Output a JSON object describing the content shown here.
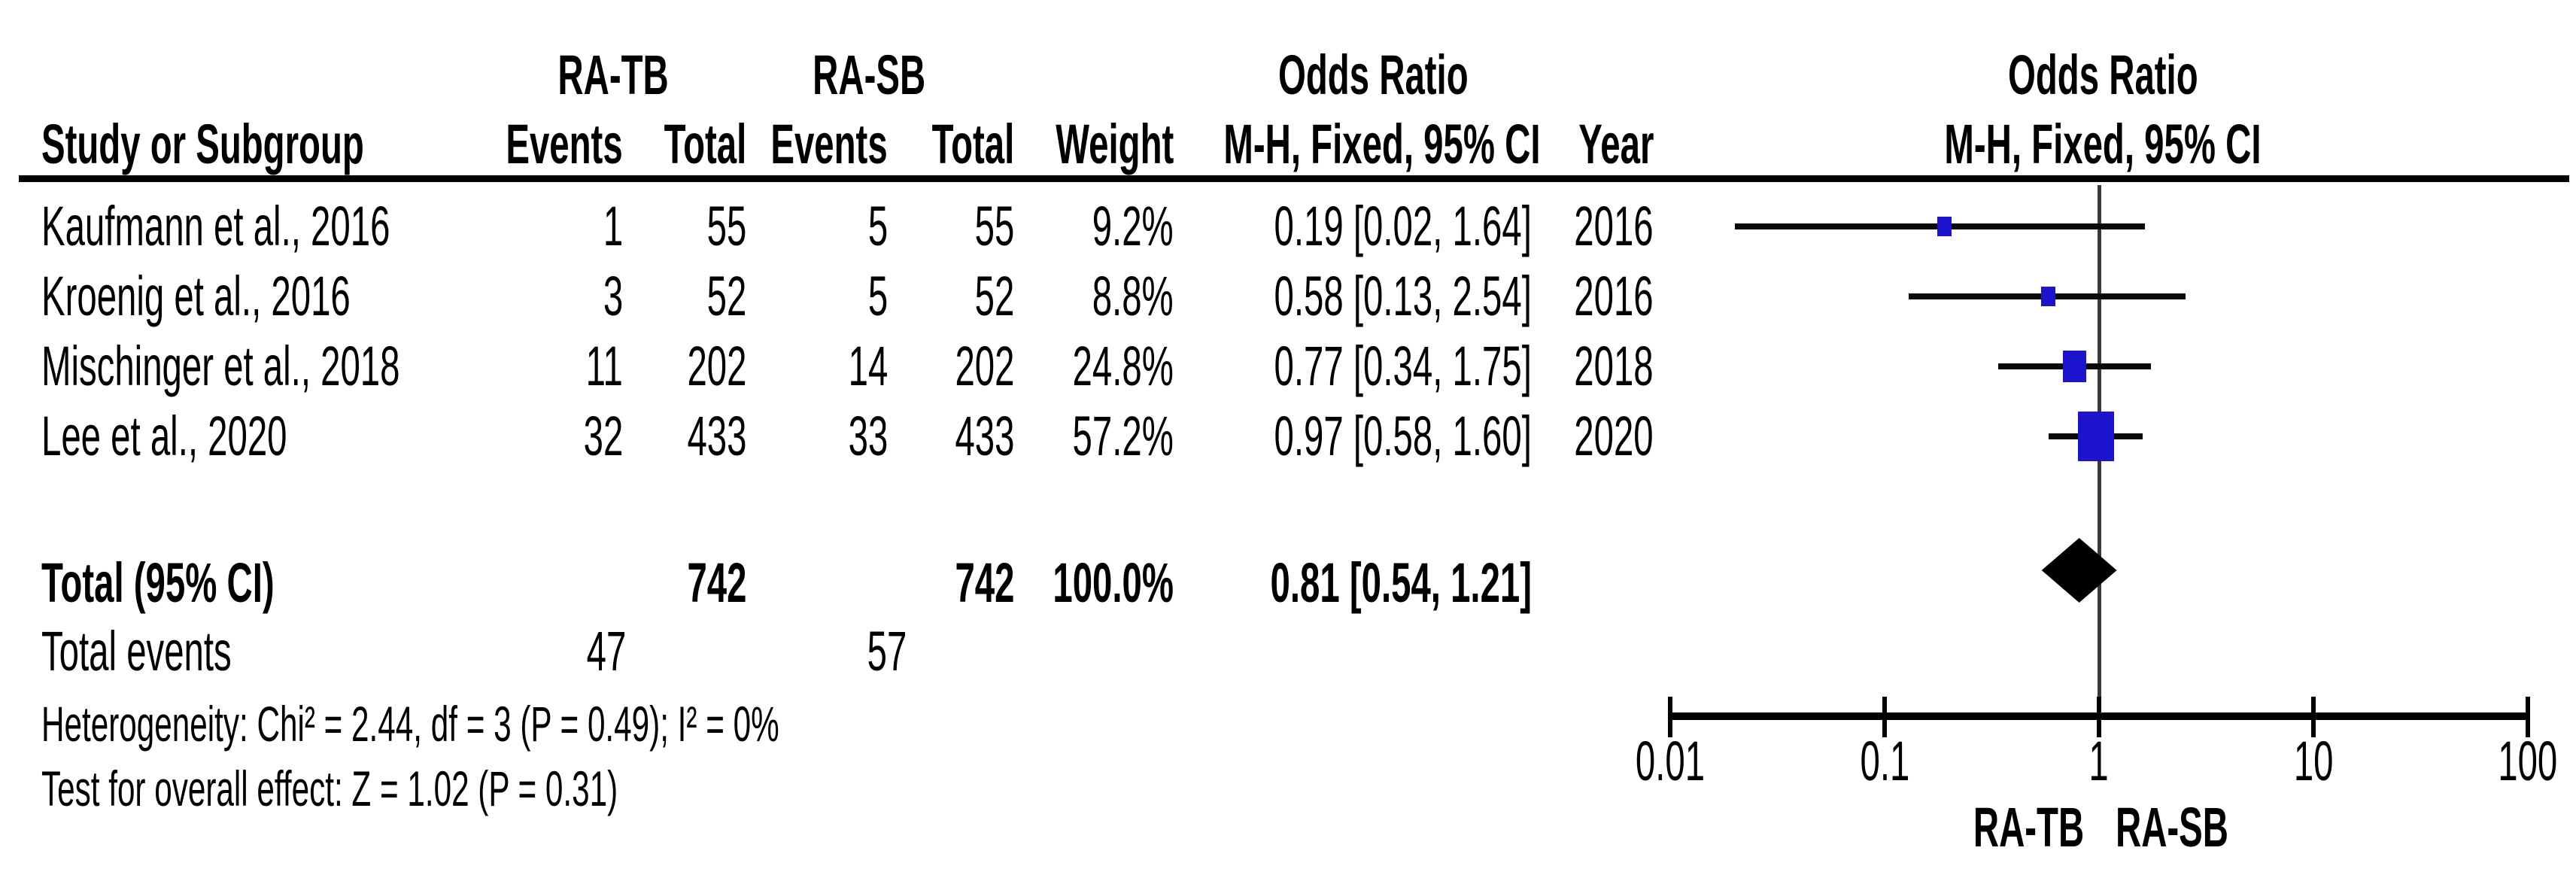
{
  "table": {
    "group_headers": {
      "ra_tb": "RA-TB",
      "ra_sb": "RA-SB",
      "odds_ratio": "Odds Ratio"
    },
    "columns": {
      "study": "Study or Subgroup",
      "tb_events": "Events",
      "tb_total": "Total",
      "sb_events": "Events",
      "sb_total": "Total",
      "weight": "Weight",
      "mh_ci": "M-H, Fixed, 95% CI",
      "year": "Year"
    },
    "rows": [
      {
        "study": "Kaufmann et al., 2016",
        "tb_events": "1",
        "tb_total": "55",
        "sb_events": "5",
        "sb_total": "55",
        "weight": "9.2%",
        "ci": "0.19 [0.02, 1.64]",
        "year": "2016"
      },
      {
        "study": "Kroenig et al., 2016",
        "tb_events": "3",
        "tb_total": "52",
        "sb_events": "5",
        "sb_total": "52",
        "weight": "8.8%",
        "ci": "0.58 [0.13, 2.54]",
        "year": "2016"
      },
      {
        "study": "Mischinger et al., 2018",
        "tb_events": "11",
        "tb_total": "202",
        "sb_events": "14",
        "sb_total": "202",
        "weight": "24.8%",
        "ci": "0.77 [0.34, 1.75]",
        "year": "2018"
      },
      {
        "study": "Lee et al., 2020",
        "tb_events": "32",
        "tb_total": "433",
        "sb_events": "33",
        "sb_total": "433",
        "weight": "57.2%",
        "ci": "0.97 [0.58, 1.60]",
        "year": "2020"
      }
    ],
    "total_row": {
      "label": "Total (95% CI)",
      "tb_total": "742",
      "sb_total": "742",
      "weight": "100.0%",
      "ci": "0.81 [0.54, 1.21]"
    },
    "total_events": {
      "label": "Total events",
      "tb": "47",
      "sb": "57"
    },
    "heterogeneity": "Heterogeneity: Chi² = 2.44, df = 3 (P = 0.49); I² = 0%",
    "overall_effect": "Test for overall effect: Z = 1.02 (P = 0.31)"
  },
  "plot_headers": {
    "title": "Odds Ratio",
    "subtitle": "M-H, Fixed, 95% CI"
  },
  "chart_data": {
    "type": "scatter",
    "subtype": "forest-plot",
    "title": "Odds Ratio",
    "subtitle": "M-H, Fixed, 95% CI",
    "x_scale": "log10",
    "x_range": [
      0.01,
      100
    ],
    "x_ticks": [
      0.01,
      0.1,
      1,
      10,
      100
    ],
    "null_line_x": 1,
    "studies": [
      {
        "name": "Kaufmann et al., 2016",
        "or": 0.19,
        "ci_low": 0.02,
        "ci_high": 1.64,
        "weight_pct": 9.2,
        "year": 2016
      },
      {
        "name": "Kroenig et al., 2016",
        "or": 0.58,
        "ci_low": 0.13,
        "ci_high": 2.54,
        "weight_pct": 8.8,
        "year": 2016
      },
      {
        "name": "Mischinger et al., 2018",
        "or": 0.77,
        "ci_low": 0.34,
        "ci_high": 1.75,
        "weight_pct": 24.8,
        "year": 2018
      },
      {
        "name": "Lee et al., 2020",
        "or": 0.97,
        "ci_low": 0.58,
        "ci_high": 1.6,
        "weight_pct": 57.2,
        "year": 2020
      }
    ],
    "total": {
      "label": "Total (95% CI)",
      "or": 0.81,
      "ci_low": 0.54,
      "ci_high": 1.21,
      "weight_pct": 100.0
    },
    "axis_group_labels": {
      "left": "RA-TB",
      "right": "RA-SB"
    },
    "marker_color": "#1c13cd",
    "ci_line_color": "#0a0a0a",
    "legend_position": "none",
    "grid": false
  }
}
